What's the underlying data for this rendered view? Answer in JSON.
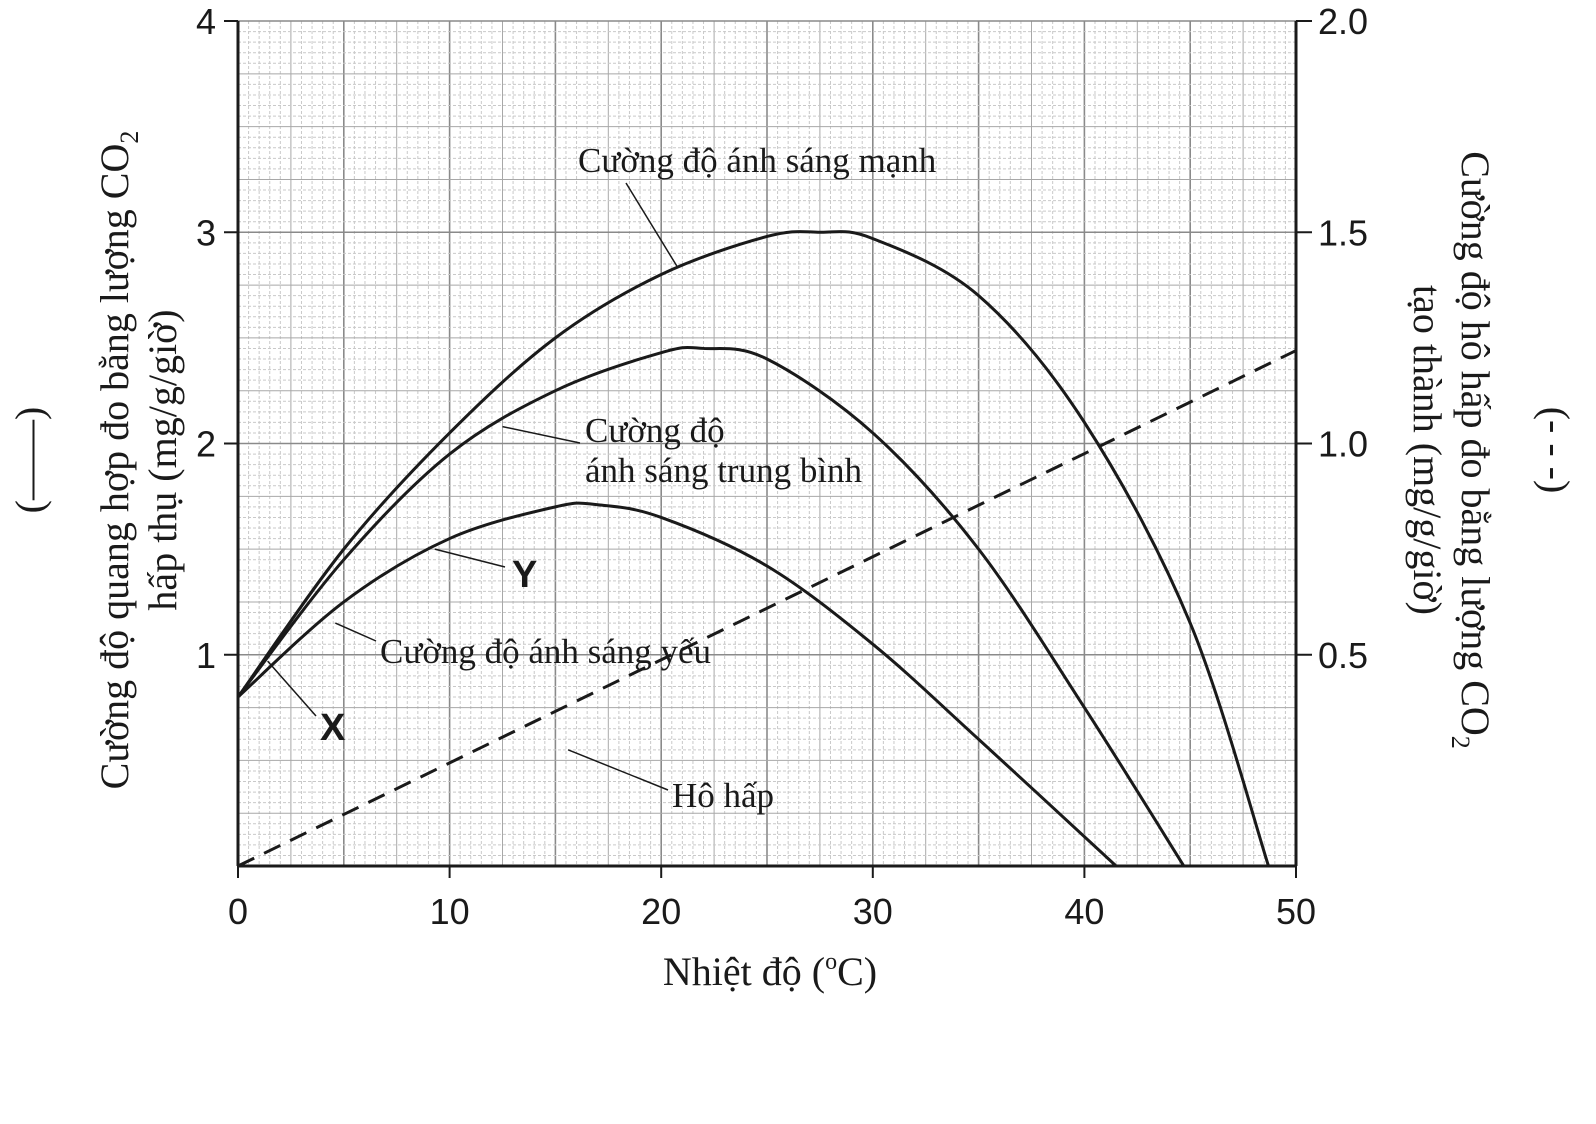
{
  "chart_data": {
    "type": "line",
    "xlabel_main": "Nhiệt độ (",
    "xlabel_sup": "o",
    "xlabel_end": "C)",
    "xlim": [
      0,
      50
    ],
    "x_ticks": [
      "0",
      "10",
      "20",
      "30",
      "40",
      "50"
    ],
    "y_left": {
      "label_line1_main": "Cường độ quang hợp đo bằng lượng CO",
      "label_line1_sub": "2",
      "label_line2": "hấp thụ (mg/g/giờ)",
      "legend_marker": "(——)",
      "ylim": [
        0,
        4
      ],
      "ticks": [
        "1",
        "2",
        "3",
        "4"
      ]
    },
    "y_right": {
      "label_line1_main": "Cường độ hô hấp đo bằng lượng CO",
      "label_line1_sub": "2",
      "label_line2": "tạo thành (mg/g/giờ)",
      "legend_marker": "(- - -)",
      "ylim": [
        0,
        2
      ],
      "ticks": [
        "0.5",
        "1.0",
        "1.5",
        "2.0"
      ]
    },
    "series": [
      {
        "name": "Cường độ ánh sáng mạnh",
        "axis": "left",
        "style": "solid",
        "points": [
          [
            0,
            0.8
          ],
          [
            5,
            1.5
          ],
          [
            10,
            2.05
          ],
          [
            15,
            2.5
          ],
          [
            20,
            2.8
          ],
          [
            25,
            2.98
          ],
          [
            27.5,
            3.0
          ],
          [
            30,
            2.97
          ],
          [
            35,
            2.7
          ],
          [
            40,
            2.1
          ],
          [
            45,
            1.15
          ],
          [
            48.7,
            0
          ]
        ]
      },
      {
        "name": "Cường độ ánh sáng trung bình",
        "name_line1": "Cường độ",
        "name_line2": "ánh sáng trung bình",
        "axis": "left",
        "style": "solid",
        "points": [
          [
            0,
            0.8
          ],
          [
            5,
            1.45
          ],
          [
            10,
            1.95
          ],
          [
            15,
            2.25
          ],
          [
            20,
            2.43
          ],
          [
            22,
            2.45
          ],
          [
            25,
            2.4
          ],
          [
            30,
            2.05
          ],
          [
            35,
            1.5
          ],
          [
            40,
            0.75
          ],
          [
            44.7,
            0
          ]
        ]
      },
      {
        "name": "Cường độ ánh sáng yếu",
        "axis": "left",
        "style": "solid",
        "points": [
          [
            0,
            0.8
          ],
          [
            5,
            1.25
          ],
          [
            10,
            1.55
          ],
          [
            15,
            1.7
          ],
          [
            17,
            1.71
          ],
          [
            20,
            1.65
          ],
          [
            25,
            1.42
          ],
          [
            30,
            1.05
          ],
          [
            35,
            0.6
          ],
          [
            41.5,
            0
          ]
        ]
      },
      {
        "name": "Hô hấp",
        "axis": "right",
        "style": "dashed",
        "points": [
          [
            0,
            0
          ],
          [
            50,
            1.22
          ]
        ]
      }
    ],
    "annotations": [
      {
        "text": "X",
        "type": "letter"
      },
      {
        "text": "Y",
        "type": "letter"
      }
    ],
    "grid": true
  }
}
